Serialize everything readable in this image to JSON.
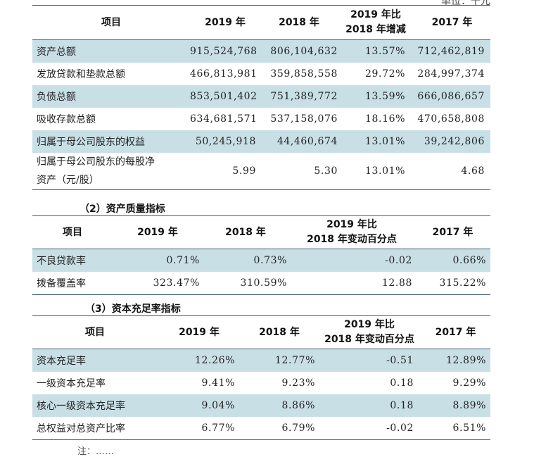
{
  "top_unit_fragment": "单位：千元",
  "section1": {
    "headers": [
      "项目",
      "2019 年",
      "2018 年",
      "2019 年比\n2018 年增减",
      "2017 年"
    ],
    "rows": [
      [
        "资产总额",
        "915,524,768",
        "806,104,632",
        "13.57%",
        "712,462,819"
      ],
      [
        "发放贷款和垫款总额",
        "466,813,981",
        "359,858,558",
        "29.72%",
        "284,997,374"
      ],
      [
        "负债总额",
        "853,501,402",
        "751,389,772",
        "13.59%",
        "666,086,657"
      ],
      [
        "吸收存款总额",
        "634,681,571",
        "537,158,076",
        "18.16%",
        "470,658,808"
      ],
      [
        "归属于母公司股东的权益",
        "50,245,918",
        "44,460,674",
        "13.01%",
        "39,242,806"
      ],
      [
        "归属于母公司股东的每股净\n资产（元/股）",
        "5.99",
        "5.30",
        "13.01%",
        "4.68"
      ]
    ]
  },
  "section2": {
    "title": "（2）资产质量指标",
    "headers": [
      "项目",
      "2019 年",
      "2018 年",
      "2019 年比\n2018 年变动百分点",
      "2017 年"
    ],
    "rows": [
      [
        "不良贷款率",
        "0.71%",
        "0.73%",
        "-0.02",
        "0.66%"
      ],
      [
        "拨备覆盖率",
        "323.47%",
        "310.59%",
        "12.88",
        "315.22%"
      ]
    ]
  },
  "section3": {
    "title": "（3）资本充足率指标",
    "headers": [
      "项目",
      "2019 年",
      "2018 年",
      "2019 年比\n2018 年变动百分点",
      "2017 年"
    ],
    "rows": [
      [
        "资本充足率",
        "12.26%",
        "12.77%",
        "-0.51",
        "12.89%"
      ],
      [
        "一级资本充足率",
        "9.41%",
        "9.23%",
        "0.18",
        "9.29%"
      ],
      [
        "核心一级资本充足率",
        "9.04%",
        "8.86%",
        "0.18",
        "8.89%"
      ],
      [
        "总权益对总资产比率",
        "6.77%",
        "6.79%",
        "-0.02",
        "6.51%"
      ]
    ]
  },
  "bottom_fragment": "注：……"
}
